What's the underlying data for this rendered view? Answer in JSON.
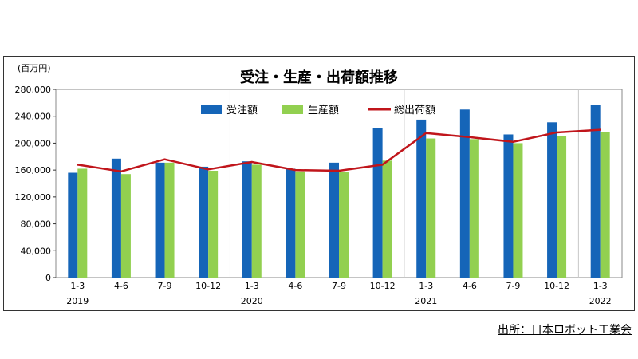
{
  "chart_data": {
    "type": "bar",
    "title": "受注・生産・出荷額推移",
    "unit_label": "(百万円)",
    "categories": [
      "1-3",
      "4-6",
      "7-9",
      "10-12",
      "1-3",
      "4-6",
      "7-9",
      "10-12",
      "1-3",
      "4-6",
      "7-9",
      "10-12",
      "1-3"
    ],
    "years": [
      {
        "label": "2019",
        "index": 0
      },
      {
        "label": "2020",
        "index": 4
      },
      {
        "label": "2021",
        "index": 8
      },
      {
        "label": "2022",
        "index": 12
      }
    ],
    "ylim": [
      0,
      280000
    ],
    "yticks": [
      0,
      40000,
      80000,
      120000,
      160000,
      200000,
      240000,
      280000
    ],
    "ytick_labels": [
      "0",
      "40,000",
      "80,000",
      "120,000",
      "160,000",
      "200,000",
      "240,000",
      "280,000"
    ],
    "year_separators_after": [
      3,
      7,
      11
    ],
    "grid": false,
    "legend_position": "top",
    "series": [
      {
        "name": "受注額",
        "kind": "bar",
        "color": "#1565b8",
        "values": [
          156000,
          177000,
          171000,
          165000,
          173000,
          162000,
          171000,
          222000,
          235000,
          250000,
          213000,
          231000,
          257000
        ]
      },
      {
        "name": "生産額",
        "kind": "bar",
        "color": "#92d050",
        "values": [
          162000,
          154000,
          171000,
          159000,
          168000,
          158000,
          157000,
          174000,
          207000,
          206000,
          200000,
          211000,
          216000
        ]
      },
      {
        "name": "総出荷額",
        "kind": "line",
        "color": "#c0151b",
        "values": [
          168000,
          158000,
          176000,
          161000,
          172000,
          160000,
          159000,
          168000,
          215000,
          209000,
          202000,
          216000,
          220000
        ]
      }
    ]
  },
  "source_note": "出所：日本ロボット工業会"
}
